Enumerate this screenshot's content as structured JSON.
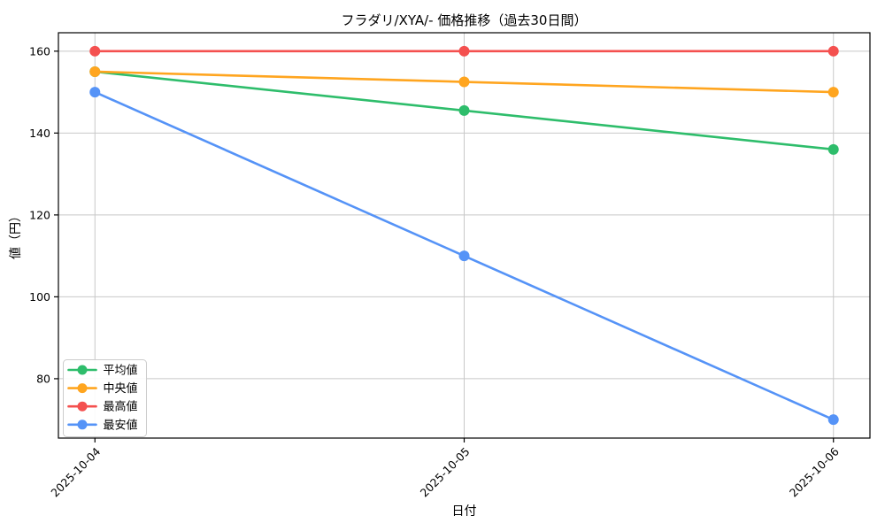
{
  "figure": {
    "background_color": "#ffffff",
    "grid_color": "#c8c8c8",
    "axis_color": "#000000",
    "legend_border_color": "#cccccc",
    "legend_background": "#ffffff"
  },
  "chart_data": {
    "type": "line",
    "title": "フラダリ/XYA/- 価格推移（過去30日間）",
    "xlabel": "日付",
    "ylabel": "値（円）",
    "categories": [
      "2025-10-04",
      "2025-10-05",
      "2025-10-06"
    ],
    "series": [
      {
        "name": "平均値",
        "color": "#2ebd6b",
        "values": [
          155,
          145.5,
          136
        ]
      },
      {
        "name": "中央値",
        "color": "#ffa51f",
        "values": [
          155,
          152.5,
          150
        ]
      },
      {
        "name": "最高値",
        "color": "#f4504f",
        "values": [
          160,
          160,
          160
        ]
      },
      {
        "name": "最安値",
        "color": "#5593f7",
        "values": [
          150,
          110,
          70
        ]
      }
    ],
    "yticks": [
      80,
      100,
      120,
      140,
      160
    ],
    "ylim": [
      65.5,
      164.5
    ],
    "grid": true,
    "marker": "circle",
    "legend_position": "lower left",
    "x_tick_rotation": 45
  }
}
